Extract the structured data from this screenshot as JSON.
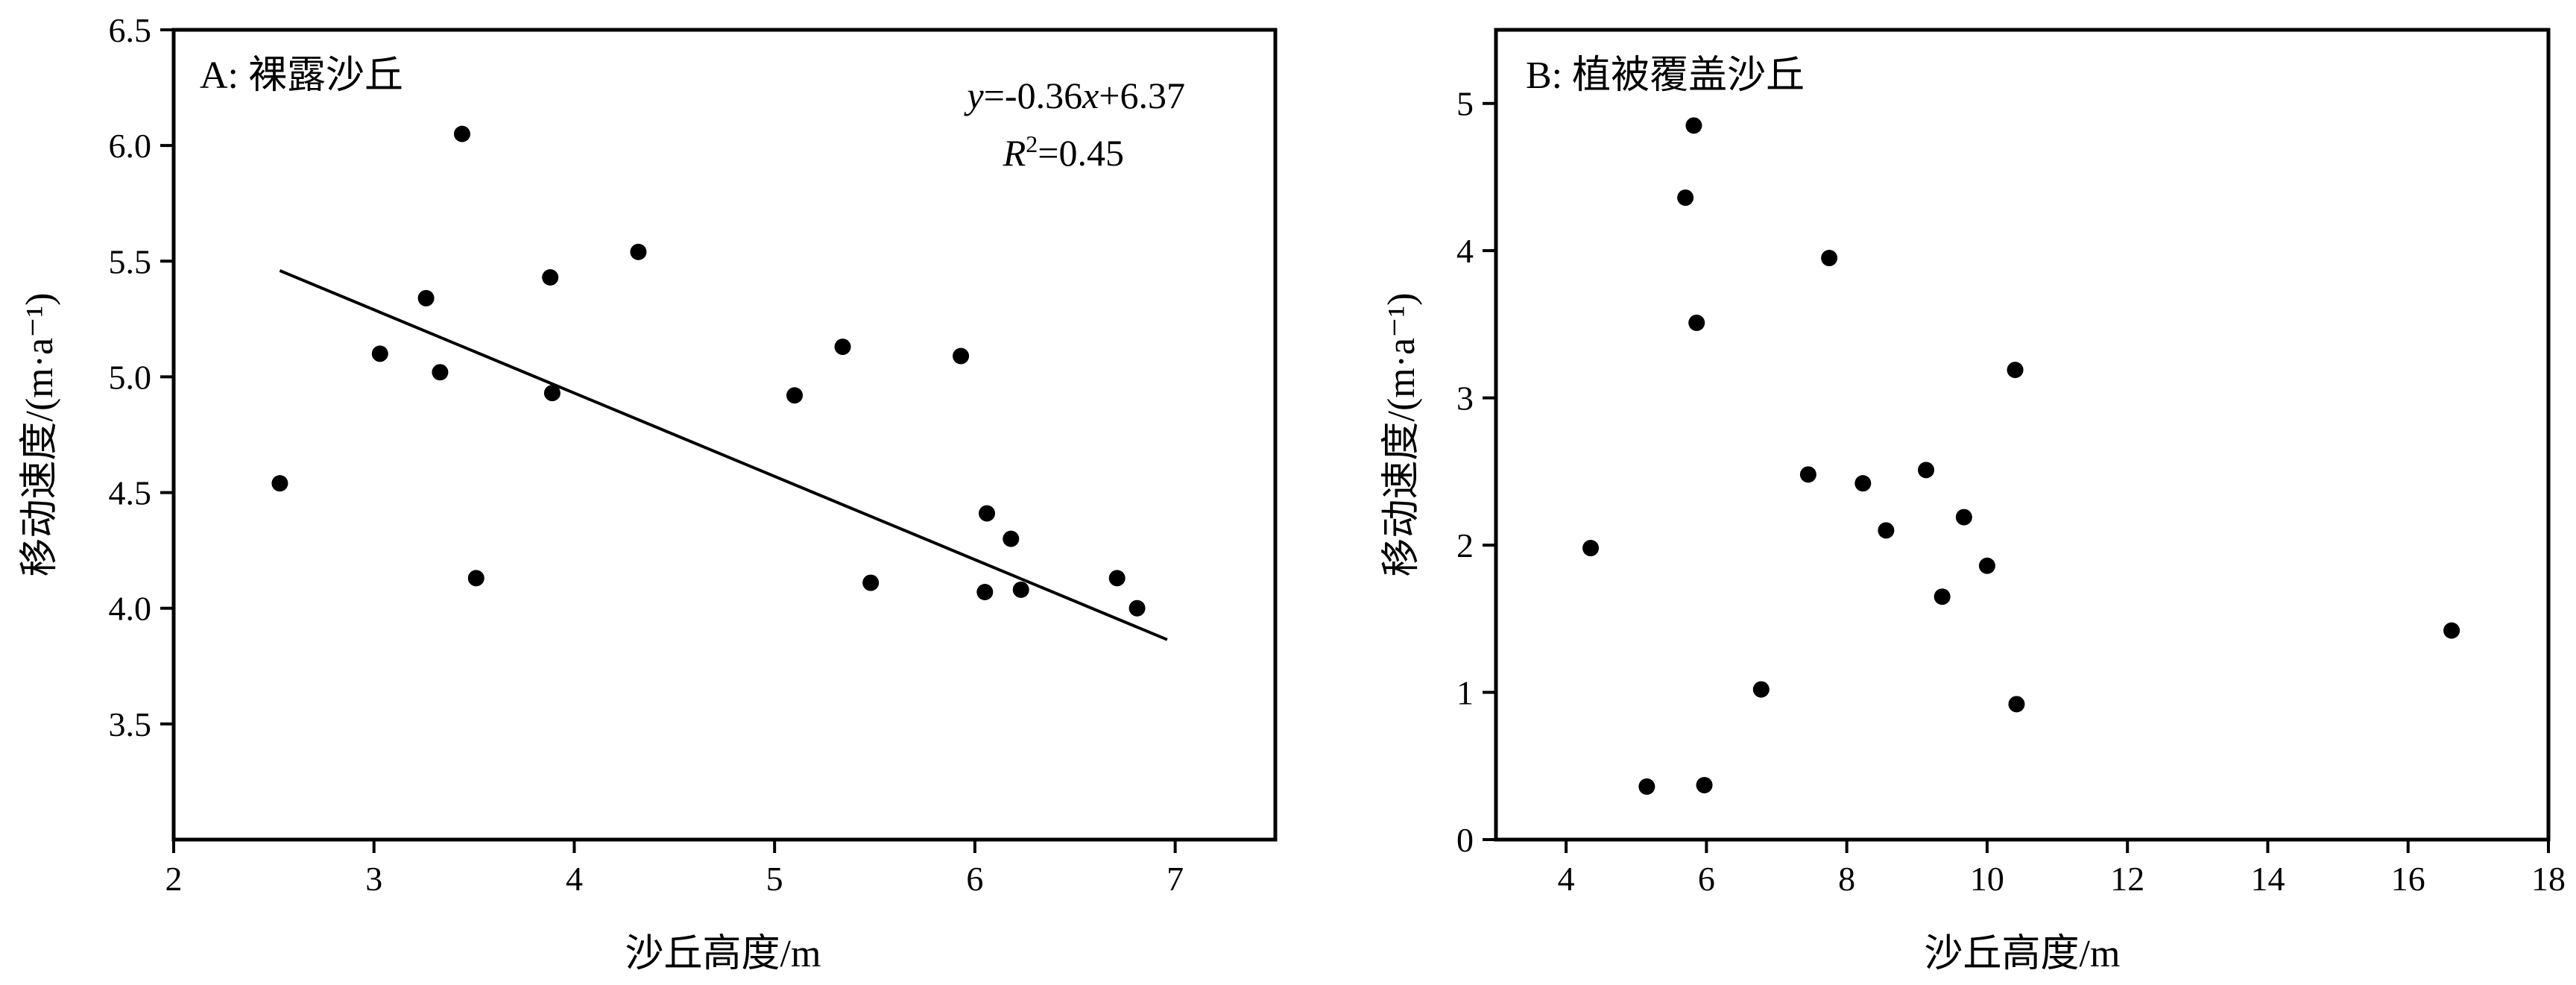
{
  "chart_data": [
    {
      "type": "scatter",
      "panel_title": "A: 裸露沙丘",
      "xlabel": "沙丘高度/m",
      "ylabel": "移动速度/(m·a⁻¹)",
      "xlim": [
        2,
        7.5
      ],
      "ylim": [
        3.0,
        6.5
      ],
      "xticks": [
        2,
        3,
        4,
        5,
        6,
        7
      ],
      "yticks": [
        3.5,
        4.0,
        4.5,
        5.0,
        5.5,
        6.0,
        6.5
      ],
      "ytick_decimals": 1,
      "points": [
        {
          "x": 2.53,
          "y": 4.54
        },
        {
          "x": 3.03,
          "y": 5.1
        },
        {
          "x": 3.26,
          "y": 5.34
        },
        {
          "x": 3.33,
          "y": 5.02
        },
        {
          "x": 3.44,
          "y": 6.05
        },
        {
          "x": 3.51,
          "y": 4.13
        },
        {
          "x": 3.88,
          "y": 5.43
        },
        {
          "x": 3.89,
          "y": 4.93
        },
        {
          "x": 4.32,
          "y": 5.54
        },
        {
          "x": 5.1,
          "y": 4.92
        },
        {
          "x": 5.34,
          "y": 5.13
        },
        {
          "x": 5.48,
          "y": 4.11
        },
        {
          "x": 5.93,
          "y": 5.09
        },
        {
          "x": 6.05,
          "y": 4.07
        },
        {
          "x": 6.06,
          "y": 4.41
        },
        {
          "x": 6.18,
          "y": 4.3
        },
        {
          "x": 6.23,
          "y": 4.08
        },
        {
          "x": 6.71,
          "y": 4.13
        },
        {
          "x": 6.81,
          "y": 4.0
        }
      ],
      "fit_line": {
        "slope": -0.36,
        "intercept": 6.37,
        "x_from": 2.53,
        "x_to": 6.96
      },
      "equation": {
        "y_part": "y",
        "mid": "=-0.36",
        "x_part": "x",
        "tail": "+6.37"
      },
      "r2": {
        "r": "R",
        "sup": "2",
        "tail": "=0.45"
      },
      "grid": false,
      "legend": "none"
    },
    {
      "type": "scatter",
      "panel_title": "B: 植被覆盖沙丘",
      "xlabel": "沙丘高度/m",
      "ylabel": "移动速度/(m·a⁻¹)",
      "xlim": [
        3,
        18
      ],
      "ylim": [
        0,
        5.5
      ],
      "xticks": [
        4,
        6,
        8,
        10,
        12,
        14,
        16,
        18
      ],
      "yticks": [
        0,
        1,
        2,
        3,
        4,
        5
      ],
      "ytick_decimals": 0,
      "points": [
        {
          "x": 4.35,
          "y": 1.98
        },
        {
          "x": 5.15,
          "y": 0.36
        },
        {
          "x": 5.7,
          "y": 4.36
        },
        {
          "x": 5.82,
          "y": 4.85
        },
        {
          "x": 5.86,
          "y": 3.51
        },
        {
          "x": 5.97,
          "y": 0.37
        },
        {
          "x": 6.78,
          "y": 1.02
        },
        {
          "x": 7.45,
          "y": 2.48
        },
        {
          "x": 7.75,
          "y": 3.95
        },
        {
          "x": 8.23,
          "y": 2.42
        },
        {
          "x": 8.56,
          "y": 2.1
        },
        {
          "x": 9.13,
          "y": 2.51
        },
        {
          "x": 9.36,
          "y": 1.65
        },
        {
          "x": 9.67,
          "y": 2.19
        },
        {
          "x": 10.0,
          "y": 1.86
        },
        {
          "x": 10.4,
          "y": 3.19
        },
        {
          "x": 10.42,
          "y": 0.92
        },
        {
          "x": 16.62,
          "y": 1.42
        }
      ],
      "grid": false,
      "legend": "none"
    }
  ]
}
